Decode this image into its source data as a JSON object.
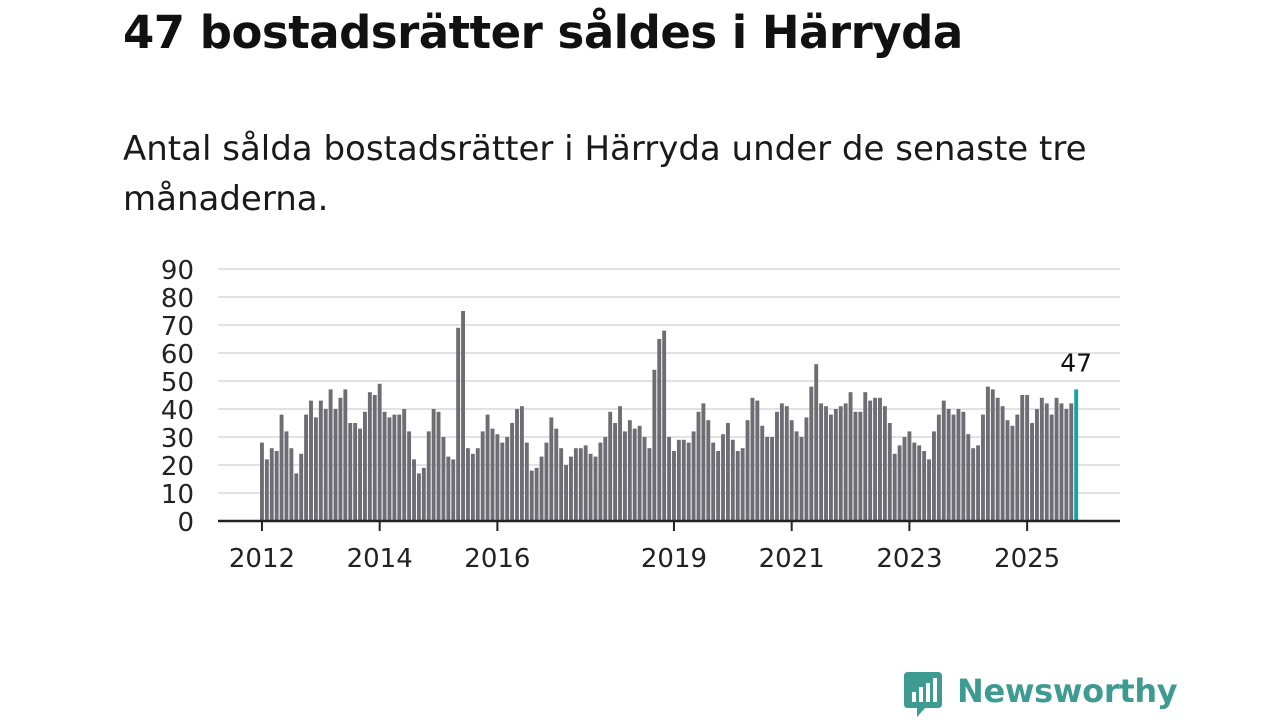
{
  "title": "47 bostadsrätter såldes i Härryda",
  "subtitle": "Antal sålda bostadsrätter i Härryda under de senaste tre månaderna.",
  "brand": {
    "name": "Newsworthy"
  },
  "colors": {
    "bar": "#6e6d73",
    "highlight": "#15a3a3",
    "grid": "#d9d9d9",
    "axis": "#222222",
    "brand": "#3e9b92"
  },
  "chart_data": {
    "type": "bar",
    "title": "47 bostadsrätter såldes i Härryda",
    "subtitle": "Antal sålda bostadsrätter i Härryda under de senaste tre månaderna.",
    "xlabel": "",
    "ylabel": "",
    "ylim": [
      0,
      90
    ],
    "yticks": [
      "0",
      "10",
      "20",
      "30",
      "40",
      "50",
      "60",
      "70",
      "80",
      "90"
    ],
    "xtick_labels": [
      "2012",
      "2014",
      "2016",
      "2019",
      "2021",
      "2023",
      "2025"
    ],
    "xtick_bar_index": [
      0,
      24,
      48,
      84,
      108,
      132,
      156
    ],
    "grid": true,
    "values": [
      28,
      22,
      26,
      25,
      38,
      32,
      26,
      17,
      24,
      38,
      43,
      37,
      43,
      40,
      47,
      40,
      44,
      47,
      35,
      35,
      33,
      39,
      46,
      45,
      49,
      39,
      37,
      38,
      38,
      40,
      32,
      22,
      17,
      19,
      32,
      40,
      39,
      30,
      23,
      22,
      69,
      75,
      26,
      24,
      26,
      32,
      38,
      33,
      31,
      28,
      30,
      35,
      40,
      41,
      28,
      18,
      19,
      23,
      28,
      37,
      33,
      26,
      20,
      23,
      26,
      26,
      27,
      24,
      23,
      28,
      30,
      39,
      35,
      41,
      32,
      36,
      33,
      34,
      30,
      26,
      54,
      65,
      68,
      30,
      25,
      29,
      29,
      28,
      32,
      39,
      42,
      36,
      28,
      25,
      31,
      35,
      29,
      25,
      26,
      36,
      44,
      43,
      34,
      30,
      30,
      39,
      42,
      41,
      36,
      32,
      30,
      37,
      48,
      56,
      42,
      41,
      38,
      40,
      41,
      42,
      46,
      39,
      39,
      46,
      43,
      44,
      44,
      41,
      35,
      24,
      27,
      30,
      32,
      28,
      27,
      25,
      22,
      32,
      38,
      43,
      40,
      38,
      40,
      39,
      31,
      26,
      27,
      38,
      48,
      47,
      44,
      41,
      36,
      34,
      38,
      45,
      45,
      35,
      40,
      44,
      42,
      38,
      44,
      42,
      40,
      42,
      47
    ],
    "highlight": {
      "index": 166,
      "label": "47"
    }
  }
}
